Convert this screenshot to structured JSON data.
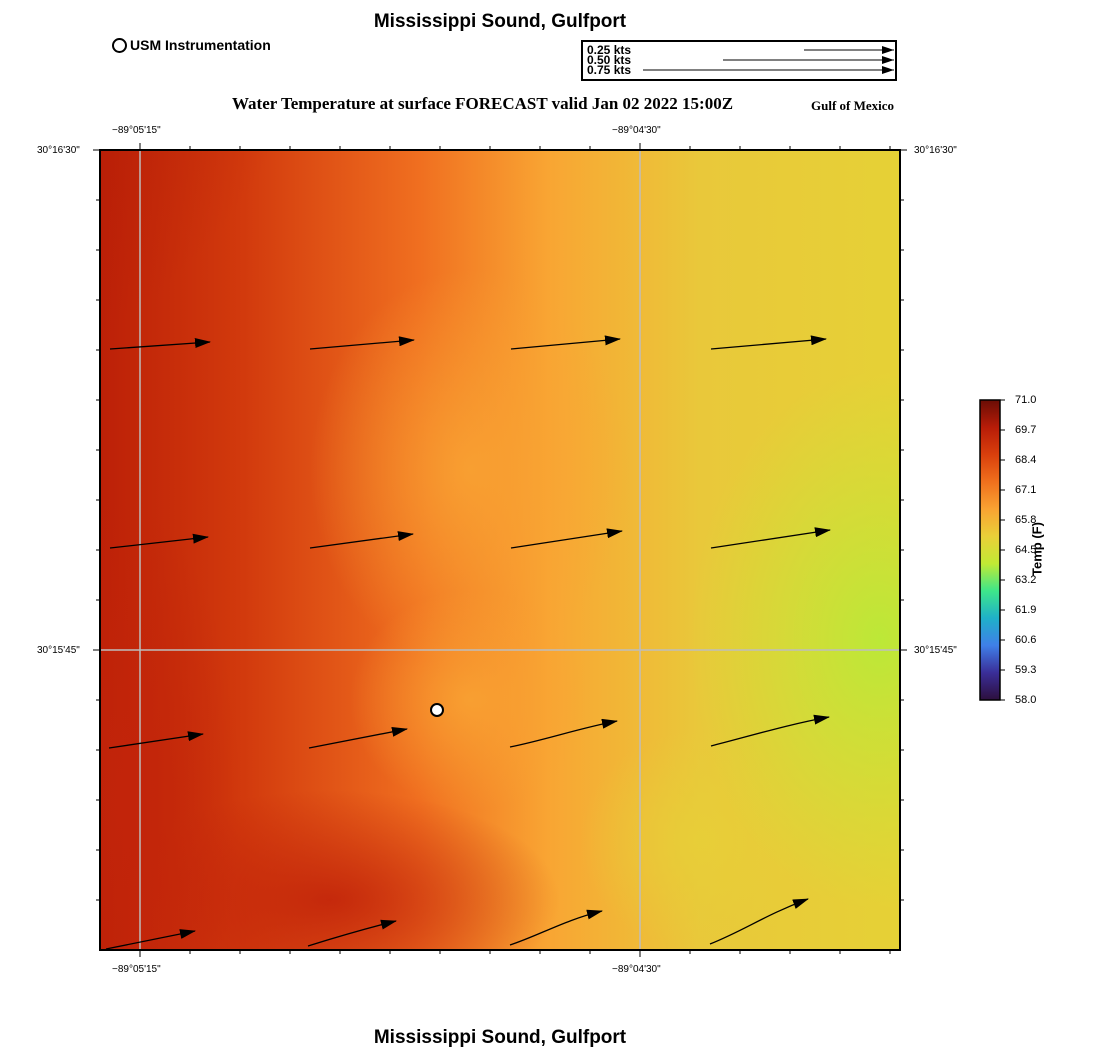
{
  "header": {
    "title": "Mississippi Sound, Gulfport",
    "footer_title": "Mississippi Sound, Gulfport",
    "station_legend": "USM Instrumentation",
    "plot_title": "Water Temperature at surface FORECAST valid Jan 02 2022 15:00Z",
    "region": "Gulf of Mexico"
  },
  "scale_legend": {
    "labels": [
      "0.25 kts",
      "0.50 kts",
      "0.75 kts"
    ]
  },
  "axes": {
    "lon_labels": [
      "−89°05'15\"",
      "−89°04'30\""
    ],
    "lat_labels": [
      "30°16'30\"",
      "30°15'45\""
    ]
  },
  "colorbar": {
    "title": "Temp (F)",
    "ticks": [
      "71.0",
      "69.7",
      "68.4",
      "67.1",
      "65.8",
      "64.5",
      "63.2",
      "61.9",
      "60.6",
      "59.3",
      "58.0"
    ],
    "colors": [
      "#6a0d05",
      "#b71c08",
      "#d93f0c",
      "#f0701d",
      "#f9a332",
      "#ead038",
      "#c1ea34",
      "#3ee68a",
      "#1fb0c9",
      "#3f7fe8",
      "#3a2e98",
      "#2d0f3d"
    ]
  },
  "map": {
    "station": "USM Instrumentation"
  }
}
